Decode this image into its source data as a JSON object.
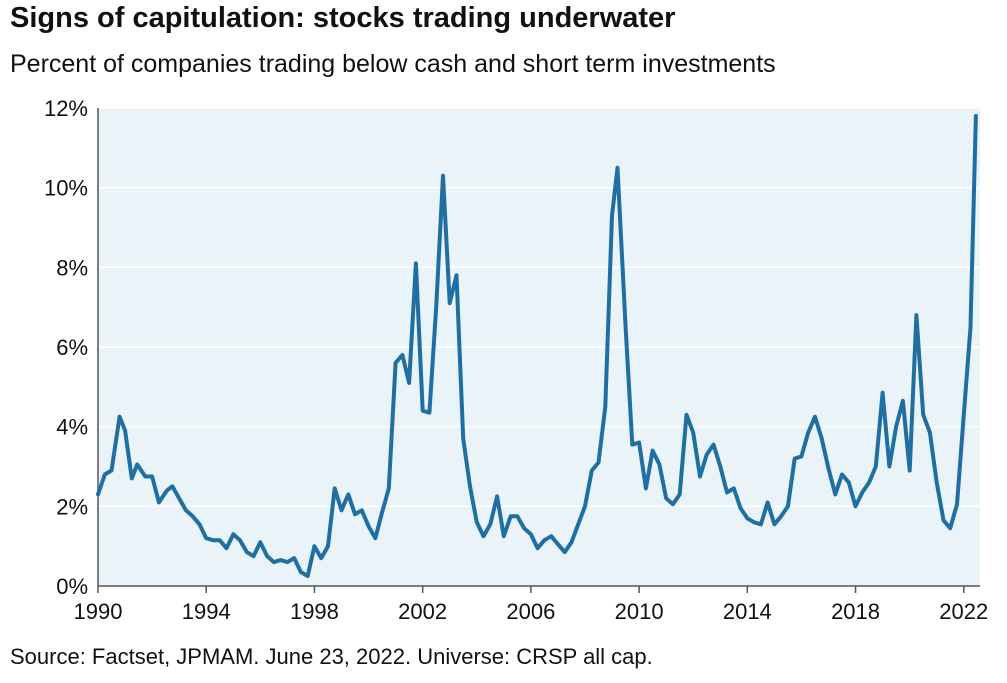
{
  "title": "Signs of capitulation: stocks trading underwater",
  "subtitle": "Percent of companies trading below cash and short term investments",
  "source": "Source: Factset, JPMAM. June 23, 2022. Universe: CRSP all cap.",
  "colors": {
    "line": "#1f6fa3",
    "plot_bg": "#e9f3f8",
    "grid": "#ffffff",
    "axis": "#555555"
  },
  "chart_data": {
    "type": "line",
    "title": "Signs of capitulation: stocks trading underwater",
    "subtitle": "Percent of companies trading below cash and short term investments",
    "xlabel": "",
    "ylabel": "",
    "xlim": [
      1990,
      2022.6
    ],
    "ylim": [
      0,
      12
    ],
    "grid": true,
    "x_ticks": [
      1990,
      1994,
      1998,
      2002,
      2006,
      2010,
      2014,
      2018,
      2022
    ],
    "x_tick_labels": [
      "1990",
      "1994",
      "1998",
      "2002",
      "2006",
      "2010",
      "2014",
      "2018",
      "2022"
    ],
    "y_ticks": [
      0,
      2,
      4,
      6,
      8,
      10,
      12
    ],
    "y_tick_labels": [
      "0%",
      "2%",
      "4%",
      "6%",
      "8%",
      "10%",
      "12%"
    ],
    "series": [
      {
        "color": "#1f6fa3",
        "points": [
          [
            1990.0,
            2.3
          ],
          [
            1990.25,
            2.8
          ],
          [
            1990.5,
            2.9
          ],
          [
            1990.8,
            4.25
          ],
          [
            1991.0,
            3.9
          ],
          [
            1991.25,
            2.7
          ],
          [
            1991.45,
            3.05
          ],
          [
            1991.75,
            2.75
          ],
          [
            1992.0,
            2.75
          ],
          [
            1992.25,
            2.1
          ],
          [
            1992.55,
            2.4
          ],
          [
            1992.75,
            2.5
          ],
          [
            1993.0,
            2.2
          ],
          [
            1993.25,
            1.9
          ],
          [
            1993.5,
            1.75
          ],
          [
            1993.75,
            1.55
          ],
          [
            1994.0,
            1.2
          ],
          [
            1994.25,
            1.15
          ],
          [
            1994.5,
            1.15
          ],
          [
            1994.75,
            0.95
          ],
          [
            1995.0,
            1.3
          ],
          [
            1995.25,
            1.15
          ],
          [
            1995.5,
            0.85
          ],
          [
            1995.75,
            0.75
          ],
          [
            1996.0,
            1.1
          ],
          [
            1996.25,
            0.75
          ],
          [
            1996.5,
            0.6
          ],
          [
            1996.75,
            0.65
          ],
          [
            1997.0,
            0.6
          ],
          [
            1997.25,
            0.7
          ],
          [
            1997.5,
            0.35
          ],
          [
            1997.75,
            0.25
          ],
          [
            1998.0,
            1.0
          ],
          [
            1998.25,
            0.7
          ],
          [
            1998.5,
            1.0
          ],
          [
            1998.75,
            2.45
          ],
          [
            1999.0,
            1.9
          ],
          [
            1999.25,
            2.3
          ],
          [
            1999.5,
            1.8
          ],
          [
            1999.75,
            1.9
          ],
          [
            2000.0,
            1.5
          ],
          [
            2000.25,
            1.2
          ],
          [
            2000.5,
            1.85
          ],
          [
            2000.75,
            2.45
          ],
          [
            2001.0,
            5.6
          ],
          [
            2001.25,
            5.8
          ],
          [
            2001.5,
            5.1
          ],
          [
            2001.75,
            8.1
          ],
          [
            2002.0,
            4.4
          ],
          [
            2002.25,
            4.35
          ],
          [
            2002.5,
            7.0
          ],
          [
            2002.75,
            10.3
          ],
          [
            2003.0,
            7.1
          ],
          [
            2003.25,
            7.8
          ],
          [
            2003.5,
            3.7
          ],
          [
            2003.75,
            2.5
          ],
          [
            2004.0,
            1.6
          ],
          [
            2004.25,
            1.25
          ],
          [
            2004.5,
            1.55
          ],
          [
            2004.75,
            2.25
          ],
          [
            2005.0,
            1.25
          ],
          [
            2005.25,
            1.75
          ],
          [
            2005.5,
            1.75
          ],
          [
            2005.75,
            1.45
          ],
          [
            2006.0,
            1.3
          ],
          [
            2006.25,
            0.95
          ],
          [
            2006.5,
            1.15
          ],
          [
            2006.75,
            1.25
          ],
          [
            2007.0,
            1.05
          ],
          [
            2007.25,
            0.85
          ],
          [
            2007.5,
            1.1
          ],
          [
            2007.75,
            1.55
          ],
          [
            2008.0,
            2.0
          ],
          [
            2008.25,
            2.9
          ],
          [
            2008.5,
            3.1
          ],
          [
            2008.75,
            4.5
          ],
          [
            2009.0,
            9.3
          ],
          [
            2009.2,
            10.5
          ],
          [
            2009.5,
            6.5
          ],
          [
            2009.75,
            3.55
          ],
          [
            2010.0,
            3.6
          ],
          [
            2010.25,
            2.45
          ],
          [
            2010.5,
            3.4
          ],
          [
            2010.75,
            3.05
          ],
          [
            2011.0,
            2.2
          ],
          [
            2011.25,
            2.05
          ],
          [
            2011.5,
            2.3
          ],
          [
            2011.75,
            4.3
          ],
          [
            2012.0,
            3.85
          ],
          [
            2012.25,
            2.75
          ],
          [
            2012.5,
            3.3
          ],
          [
            2012.75,
            3.55
          ],
          [
            2013.0,
            3.0
          ],
          [
            2013.25,
            2.35
          ],
          [
            2013.5,
            2.45
          ],
          [
            2013.75,
            1.95
          ],
          [
            2014.0,
            1.7
          ],
          [
            2014.25,
            1.6
          ],
          [
            2014.5,
            1.55
          ],
          [
            2014.75,
            2.1
          ],
          [
            2015.0,
            1.55
          ],
          [
            2015.25,
            1.75
          ],
          [
            2015.5,
            2.0
          ],
          [
            2015.75,
            3.2
          ],
          [
            2016.0,
            3.25
          ],
          [
            2016.25,
            3.85
          ],
          [
            2016.5,
            4.25
          ],
          [
            2016.75,
            3.7
          ],
          [
            2017.0,
            2.95
          ],
          [
            2017.25,
            2.3
          ],
          [
            2017.5,
            2.8
          ],
          [
            2017.75,
            2.6
          ],
          [
            2018.0,
            2.0
          ],
          [
            2018.25,
            2.35
          ],
          [
            2018.5,
            2.6
          ],
          [
            2018.75,
            3.0
          ],
          [
            2019.0,
            4.85
          ],
          [
            2019.25,
            3.0
          ],
          [
            2019.5,
            4.0
          ],
          [
            2019.75,
            4.65
          ],
          [
            2020.0,
            2.9
          ],
          [
            2020.25,
            6.8
          ],
          [
            2020.5,
            4.3
          ],
          [
            2020.75,
            3.85
          ],
          [
            2021.0,
            2.6
          ],
          [
            2021.25,
            1.65
          ],
          [
            2021.5,
            1.45
          ],
          [
            2021.75,
            2.05
          ],
          [
            2022.0,
            4.3
          ],
          [
            2022.25,
            6.5
          ],
          [
            2022.45,
            11.8
          ]
        ]
      }
    ]
  }
}
